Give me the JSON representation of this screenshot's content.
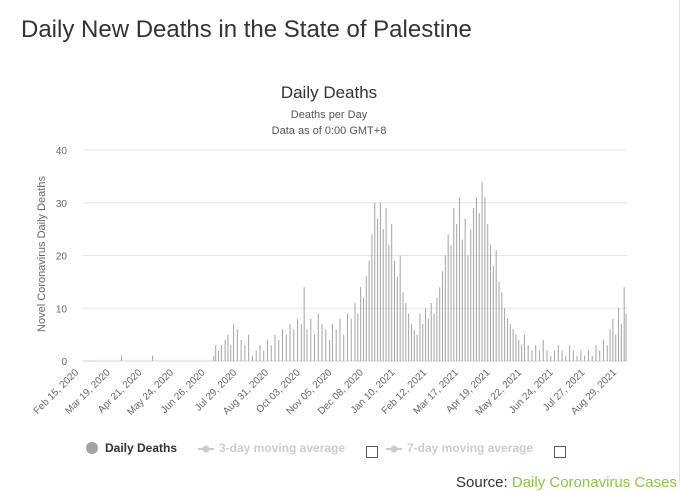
{
  "page_title": "Daily New Deaths in the State of Palestine",
  "source": {
    "label": "Source:",
    "link_text": "Daily Coronavirus Cases"
  },
  "colors": {
    "bar": "#a3a3a3",
    "legend_inactive": "#cccccc",
    "link": "#8dc63f"
  },
  "chart_data": {
    "type": "bar",
    "title": "Daily Deaths",
    "subtitle_lines": [
      "Deaths per Day",
      "Data as of 0:00 GMT+8"
    ],
    "ylabel": "Novel Coronavirus Daily Deaths",
    "ylim": [
      0,
      40
    ],
    "yticks": [
      0,
      10,
      20,
      30,
      40
    ],
    "grid": true,
    "x_start": "2020-02-15",
    "x_end": "2021-09-15",
    "xtick_labels": [
      "Feb 15, 2020",
      "Mar 19, 2020",
      "Apr 21, 2020",
      "May 24, 2020",
      "Jun 26, 2020",
      "Jul 29, 2020",
      "Aug 31, 2020",
      "Oct 03, 2020",
      "Nov 05, 2020",
      "Dec 08, 2020",
      "Jan 10, 2021",
      "Feb 12, 2021",
      "Mar 17, 2021",
      "Apr 19, 2021",
      "May 22, 2021",
      "Jun 24, 2021",
      "Jul 27, 2021",
      "Aug 29, 2021"
    ],
    "legend": [
      {
        "name": "Daily Deaths",
        "active": true
      },
      {
        "name": "3-day moving average",
        "active": false
      },
      {
        "name": "7-day moving average",
        "active": false
      }
    ],
    "legend_position": "bottom",
    "series": [
      {
        "name": "Daily Deaths",
        "points": [
          {
            "date": "2020-03-27",
            "value": 1
          },
          {
            "date": "2020-04-29",
            "value": 1
          },
          {
            "date": "2020-07-03",
            "value": 1
          },
          {
            "date": "2020-07-05",
            "value": 3
          },
          {
            "date": "2020-07-08",
            "value": 2
          },
          {
            "date": "2020-07-11",
            "value": 3
          },
          {
            "date": "2020-07-15",
            "value": 4
          },
          {
            "date": "2020-07-18",
            "value": 5
          },
          {
            "date": "2020-07-21",
            "value": 3
          },
          {
            "date": "2020-07-24",
            "value": 7
          },
          {
            "date": "2020-07-28",
            "value": 6
          },
          {
            "date": "2020-08-01",
            "value": 4
          },
          {
            "date": "2020-08-05",
            "value": 3
          },
          {
            "date": "2020-08-09",
            "value": 5
          },
          {
            "date": "2020-08-13",
            "value": 1
          },
          {
            "date": "2020-08-17",
            "value": 2
          },
          {
            "date": "2020-08-21",
            "value": 3
          },
          {
            "date": "2020-08-25",
            "value": 2
          },
          {
            "date": "2020-08-29",
            "value": 4
          },
          {
            "date": "2020-09-02",
            "value": 3
          },
          {
            "date": "2020-09-06",
            "value": 5
          },
          {
            "date": "2020-09-10",
            "value": 4
          },
          {
            "date": "2020-09-14",
            "value": 6
          },
          {
            "date": "2020-09-18",
            "value": 5
          },
          {
            "date": "2020-09-22",
            "value": 7
          },
          {
            "date": "2020-09-26",
            "value": 6
          },
          {
            "date": "2020-09-30",
            "value": 8
          },
          {
            "date": "2020-10-04",
            "value": 7
          },
          {
            "date": "2020-10-07",
            "value": 14
          },
          {
            "date": "2020-10-10",
            "value": 6
          },
          {
            "date": "2020-10-14",
            "value": 8
          },
          {
            "date": "2020-10-18",
            "value": 5
          },
          {
            "date": "2020-10-22",
            "value": 9
          },
          {
            "date": "2020-10-26",
            "value": 7
          },
          {
            "date": "2020-10-30",
            "value": 6
          },
          {
            "date": "2020-11-03",
            "value": 4
          },
          {
            "date": "2020-11-06",
            "value": 7
          },
          {
            "date": "2020-11-10",
            "value": 6
          },
          {
            "date": "2020-11-14",
            "value": 8
          },
          {
            "date": "2020-11-18",
            "value": 5
          },
          {
            "date": "2020-11-22",
            "value": 9
          },
          {
            "date": "2020-11-26",
            "value": 8
          },
          {
            "date": "2020-11-30",
            "value": 11
          },
          {
            "date": "2020-12-03",
            "value": 9
          },
          {
            "date": "2020-12-06",
            "value": 14
          },
          {
            "date": "2020-12-09",
            "value": 12
          },
          {
            "date": "2020-12-12",
            "value": 16
          },
          {
            "date": "2020-12-15",
            "value": 19
          },
          {
            "date": "2020-12-18",
            "value": 24
          },
          {
            "date": "2020-12-21",
            "value": 30
          },
          {
            "date": "2020-12-24",
            "value": 27
          },
          {
            "date": "2020-12-27",
            "value": 30
          },
          {
            "date": "2020-12-30",
            "value": 25
          },
          {
            "date": "2021-01-02",
            "value": 29
          },
          {
            "date": "2021-01-05",
            "value": 22
          },
          {
            "date": "2021-01-08",
            "value": 26
          },
          {
            "date": "2021-01-11",
            "value": 19
          },
          {
            "date": "2021-01-14",
            "value": 16
          },
          {
            "date": "2021-01-17",
            "value": 20
          },
          {
            "date": "2021-01-20",
            "value": 13
          },
          {
            "date": "2021-01-23",
            "value": 11
          },
          {
            "date": "2021-01-26",
            "value": 9
          },
          {
            "date": "2021-01-29",
            "value": 7
          },
          {
            "date": "2021-02-01",
            "value": 6
          },
          {
            "date": "2021-02-04",
            "value": 5
          },
          {
            "date": "2021-02-07",
            "value": 9
          },
          {
            "date": "2021-02-10",
            "value": 7
          },
          {
            "date": "2021-02-13",
            "value": 10
          },
          {
            "date": "2021-02-16",
            "value": 8
          },
          {
            "date": "2021-02-19",
            "value": 11
          },
          {
            "date": "2021-02-22",
            "value": 9
          },
          {
            "date": "2021-02-25",
            "value": 12
          },
          {
            "date": "2021-02-28",
            "value": 14
          },
          {
            "date": "2021-03-03",
            "value": 17
          },
          {
            "date": "2021-03-06",
            "value": 20
          },
          {
            "date": "2021-03-09",
            "value": 24
          },
          {
            "date": "2021-03-12",
            "value": 22
          },
          {
            "date": "2021-03-15",
            "value": 29
          },
          {
            "date": "2021-03-18",
            "value": 26
          },
          {
            "date": "2021-03-21",
            "value": 31
          },
          {
            "date": "2021-03-24",
            "value": 23
          },
          {
            "date": "2021-03-27",
            "value": 27
          },
          {
            "date": "2021-03-30",
            "value": 20
          },
          {
            "date": "2021-04-02",
            "value": 25
          },
          {
            "date": "2021-04-05",
            "value": 29
          },
          {
            "date": "2021-04-08",
            "value": 31
          },
          {
            "date": "2021-04-11",
            "value": 28
          },
          {
            "date": "2021-04-14",
            "value": 34
          },
          {
            "date": "2021-04-17",
            "value": 31
          },
          {
            "date": "2021-04-20",
            "value": 26
          },
          {
            "date": "2021-04-23",
            "value": 22
          },
          {
            "date": "2021-04-26",
            "value": 18
          },
          {
            "date": "2021-04-29",
            "value": 21
          },
          {
            "date": "2021-05-02",
            "value": 15
          },
          {
            "date": "2021-05-05",
            "value": 13
          },
          {
            "date": "2021-05-08",
            "value": 10
          },
          {
            "date": "2021-05-11",
            "value": 8
          },
          {
            "date": "2021-05-14",
            "value": 7
          },
          {
            "date": "2021-05-17",
            "value": 6
          },
          {
            "date": "2021-05-20",
            "value": 5
          },
          {
            "date": "2021-05-23",
            "value": 4
          },
          {
            "date": "2021-05-26",
            "value": 3
          },
          {
            "date": "2021-05-29",
            "value": 5
          },
          {
            "date": "2021-06-02",
            "value": 3
          },
          {
            "date": "2021-06-06",
            "value": 2
          },
          {
            "date": "2021-06-10",
            "value": 3
          },
          {
            "date": "2021-06-14",
            "value": 2
          },
          {
            "date": "2021-06-18",
            "value": 4
          },
          {
            "date": "2021-06-22",
            "value": 2
          },
          {
            "date": "2021-06-26",
            "value": 1
          },
          {
            "date": "2021-06-30",
            "value": 2
          },
          {
            "date": "2021-07-04",
            "value": 3
          },
          {
            "date": "2021-07-08",
            "value": 2
          },
          {
            "date": "2021-07-12",
            "value": 1
          },
          {
            "date": "2021-07-16",
            "value": 3
          },
          {
            "date": "2021-07-20",
            "value": 2
          },
          {
            "date": "2021-07-24",
            "value": 1
          },
          {
            "date": "2021-07-28",
            "value": 2
          },
          {
            "date": "2021-08-01",
            "value": 1
          },
          {
            "date": "2021-08-05",
            "value": 2
          },
          {
            "date": "2021-08-09",
            "value": 1
          },
          {
            "date": "2021-08-13",
            "value": 3
          },
          {
            "date": "2021-08-17",
            "value": 2
          },
          {
            "date": "2021-08-21",
            "value": 4
          },
          {
            "date": "2021-08-25",
            "value": 3
          },
          {
            "date": "2021-08-28",
            "value": 6
          },
          {
            "date": "2021-08-31",
            "value": 8
          },
          {
            "date": "2021-09-03",
            "value": 5
          },
          {
            "date": "2021-09-06",
            "value": 10
          },
          {
            "date": "2021-09-09",
            "value": 7
          },
          {
            "date": "2021-09-12",
            "value": 14
          },
          {
            "date": "2021-09-14",
            "value": 9
          }
        ]
      }
    ]
  }
}
